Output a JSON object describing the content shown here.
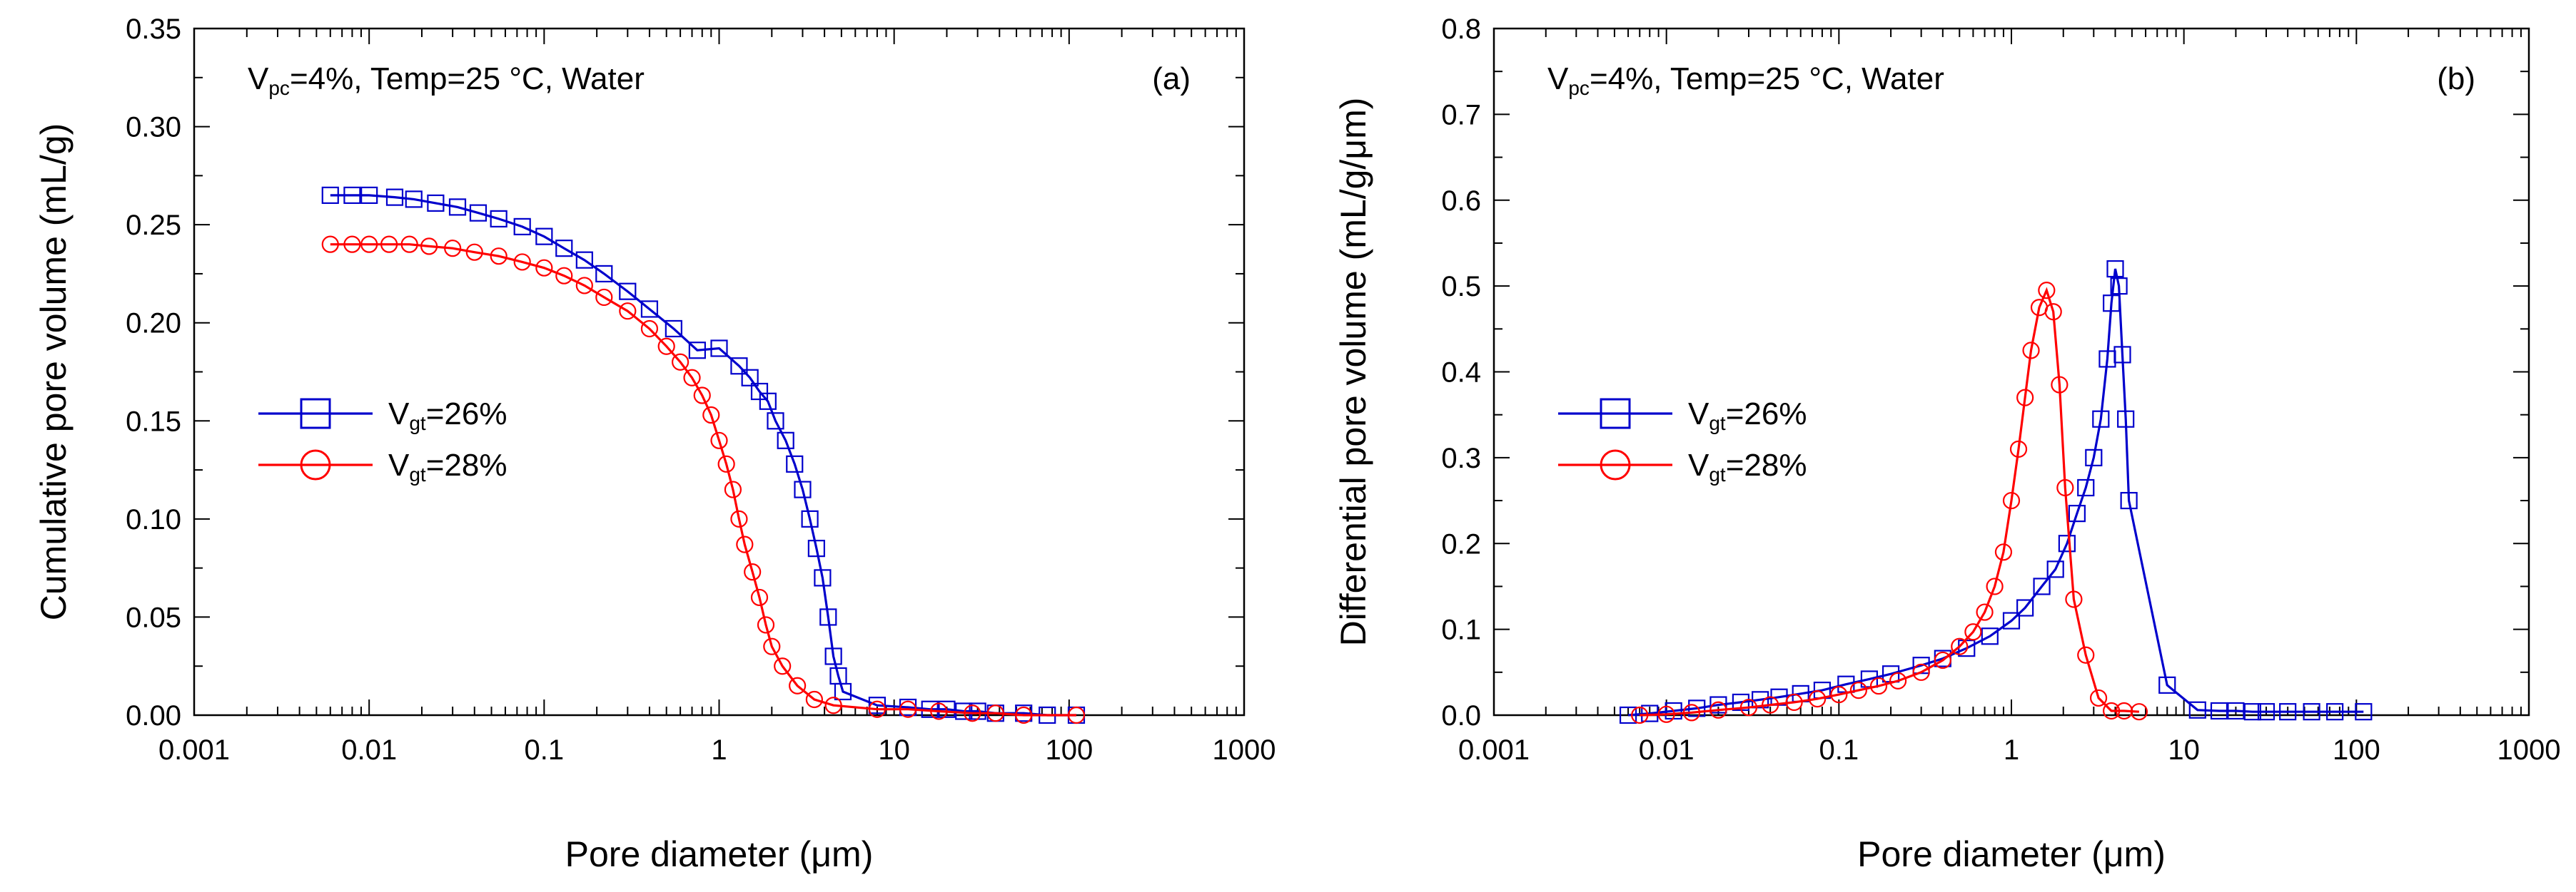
{
  "chart_data": [
    {
      "type": "line",
      "panel_label": "(a)",
      "annotation": {
        "main": "V",
        "sub": "pc",
        "rest": "=4%, Temp=25 °C, Water"
      },
      "xlabel": {
        "main": "Pore diameter (",
        "mu": "μ",
        "rest": "m)"
      },
      "ylabel": "Cumulative pore volume (mL/g)",
      "xscale": "log",
      "xlim": [
        0.001,
        1000
      ],
      "ylim": [
        0,
        0.35
      ],
      "x_ticks": [
        "0.001",
        "0.01",
        "0.1",
        "1",
        "10",
        "100",
        "1000"
      ],
      "y_ticks": [
        "0.00",
        "0.05",
        "0.10",
        "0.15",
        "0.20",
        "0.25",
        "0.30",
        "0.35"
      ],
      "legend_position": "center-left",
      "series": [
        {
          "name": "Vgt=26%",
          "legend": {
            "main": "V",
            "sub": "gt",
            "rest": "=26%"
          },
          "color": "#0000cc",
          "marker": "square",
          "points": [
            [
              0.006,
              0.265
            ],
            [
              0.008,
              0.265
            ],
            [
              0.01,
              0.265
            ],
            [
              0.014,
              0.264
            ],
            [
              0.018,
              0.263
            ],
            [
              0.024,
              0.261
            ],
            [
              0.032,
              0.259
            ],
            [
              0.042,
              0.256
            ],
            [
              0.055,
              0.253
            ],
            [
              0.075,
              0.249
            ],
            [
              0.1,
              0.244
            ],
            [
              0.13,
              0.238
            ],
            [
              0.17,
              0.232
            ],
            [
              0.22,
              0.225
            ],
            [
              0.3,
              0.216
            ],
            [
              0.4,
              0.207
            ],
            [
              0.55,
              0.197
            ],
            [
              0.75,
              0.186
            ],
            [
              1.0,
              0.187
            ],
            [
              1.3,
              0.178
            ],
            [
              1.5,
              0.172
            ],
            [
              1.7,
              0.165
            ],
            [
              1.9,
              0.16
            ],
            [
              2.1,
              0.15
            ],
            [
              2.4,
              0.14
            ],
            [
              2.7,
              0.128
            ],
            [
              3.0,
              0.115
            ],
            [
              3.3,
              0.1
            ],
            [
              3.6,
              0.085
            ],
            [
              3.9,
              0.07
            ],
            [
              4.2,
              0.05
            ],
            [
              4.5,
              0.03
            ],
            [
              4.8,
              0.02
            ],
            [
              5.1,
              0.012
            ],
            [
              8.0,
              0.005
            ],
            [
              12,
              0.004
            ],
            [
              16,
              0.003
            ],
            [
              20,
              0.003
            ],
            [
              25,
              0.002
            ],
            [
              30,
              0.002
            ],
            [
              38,
              0.001
            ],
            [
              55,
              0.001
            ],
            [
              75,
              0.0
            ],
            [
              110,
              0.0
            ]
          ]
        },
        {
          "name": "Vgt=28%",
          "legend": {
            "main": "V",
            "sub": "gt",
            "rest": "=28%"
          },
          "color": "#ff0000",
          "marker": "circle",
          "points": [
            [
              0.006,
              0.24
            ],
            [
              0.008,
              0.24
            ],
            [
              0.01,
              0.24
            ],
            [
              0.013,
              0.24
            ],
            [
              0.017,
              0.24
            ],
            [
              0.022,
              0.239
            ],
            [
              0.03,
              0.238
            ],
            [
              0.04,
              0.236
            ],
            [
              0.055,
              0.234
            ],
            [
              0.075,
              0.231
            ],
            [
              0.1,
              0.228
            ],
            [
              0.13,
              0.224
            ],
            [
              0.17,
              0.219
            ],
            [
              0.22,
              0.213
            ],
            [
              0.3,
              0.206
            ],
            [
              0.4,
              0.197
            ],
            [
              0.5,
              0.188
            ],
            [
              0.6,
              0.18
            ],
            [
              0.7,
              0.172
            ],
            [
              0.8,
              0.163
            ],
            [
              0.9,
              0.153
            ],
            [
              1.0,
              0.14
            ],
            [
              1.1,
              0.128
            ],
            [
              1.2,
              0.115
            ],
            [
              1.3,
              0.1
            ],
            [
              1.4,
              0.087
            ],
            [
              1.55,
              0.073
            ],
            [
              1.7,
              0.06
            ],
            [
              1.85,
              0.046
            ],
            [
              2.0,
              0.035
            ],
            [
              2.3,
              0.025
            ],
            [
              2.8,
              0.015
            ],
            [
              3.5,
              0.008
            ],
            [
              4.5,
              0.005
            ],
            [
              8.0,
              0.003
            ],
            [
              12,
              0.003
            ],
            [
              18,
              0.002
            ],
            [
              28,
              0.001
            ],
            [
              38,
              0.001
            ],
            [
              55,
              0.0
            ],
            [
              110,
              0.0
            ]
          ]
        }
      ]
    },
    {
      "type": "line",
      "panel_label": "(b)",
      "annotation": {
        "main": "V",
        "sub": "pc",
        "rest": "=4%, Temp=25 °C, Water"
      },
      "xlabel": {
        "main": "Pore diameter (",
        "mu": "μ",
        "rest": "m)"
      },
      "ylabel": "Differential pore volume (mL/g/μm)",
      "xscale": "log",
      "xlim": [
        0.001,
        1000
      ],
      "ylim": [
        0,
        0.8
      ],
      "x_ticks": [
        "0.001",
        "0.01",
        "0.1",
        "1",
        "10",
        "100",
        "1000"
      ],
      "y_ticks": [
        "0.0",
        "0.1",
        "0.2",
        "0.3",
        "0.4",
        "0.5",
        "0.6",
        "0.7",
        "0.8"
      ],
      "legend_position": "center-left",
      "series": [
        {
          "name": "Vgt=26%",
          "legend": {
            "main": "V",
            "sub": "gt",
            "rest": "=26%"
          },
          "color": "#0000cc",
          "marker": "square",
          "points": [
            [
              0.006,
              0.0
            ],
            [
              0.008,
              0.002
            ],
            [
              0.011,
              0.005
            ],
            [
              0.015,
              0.008
            ],
            [
              0.02,
              0.012
            ],
            [
              0.027,
              0.015
            ],
            [
              0.035,
              0.018
            ],
            [
              0.045,
              0.021
            ],
            [
              0.06,
              0.025
            ],
            [
              0.08,
              0.029
            ],
            [
              0.11,
              0.036
            ],
            [
              0.15,
              0.042
            ],
            [
              0.2,
              0.048
            ],
            [
              0.3,
              0.058
            ],
            [
              0.4,
              0.066
            ],
            [
              0.55,
              0.078
            ],
            [
              0.75,
              0.092
            ],
            [
              1.0,
              0.11
            ],
            [
              1.2,
              0.125
            ],
            [
              1.5,
              0.15
            ],
            [
              1.8,
              0.17
            ],
            [
              2.1,
              0.2
            ],
            [
              2.4,
              0.235
            ],
            [
              2.7,
              0.265
            ],
            [
              3.0,
              0.3
            ],
            [
              3.3,
              0.345
            ],
            [
              3.6,
              0.415
            ],
            [
              3.8,
              0.48
            ],
            [
              4.0,
              0.52
            ],
            [
              4.2,
              0.5
            ],
            [
              4.4,
              0.42
            ],
            [
              4.6,
              0.345
            ],
            [
              4.8,
              0.25
            ],
            [
              8.0,
              0.035
            ],
            [
              12,
              0.006
            ],
            [
              16,
              0.005
            ],
            [
              20,
              0.005
            ],
            [
              25,
              0.004
            ],
            [
              30,
              0.004
            ],
            [
              40,
              0.004
            ],
            [
              55,
              0.004
            ],
            [
              75,
              0.004
            ],
            [
              110,
              0.004
            ]
          ]
        },
        {
          "name": "Vgt=28%",
          "legend": {
            "main": "V",
            "sub": "gt",
            "rest": "=28%"
          },
          "color": "#ff0000",
          "marker": "circle",
          "points": [
            [
              0.007,
              0.0
            ],
            [
              0.01,
              0.001
            ],
            [
              0.014,
              0.003
            ],
            [
              0.02,
              0.006
            ],
            [
              0.03,
              0.009
            ],
            [
              0.04,
              0.012
            ],
            [
              0.055,
              0.015
            ],
            [
              0.075,
              0.019
            ],
            [
              0.1,
              0.024
            ],
            [
              0.13,
              0.029
            ],
            [
              0.17,
              0.034
            ],
            [
              0.22,
              0.04
            ],
            [
              0.3,
              0.05
            ],
            [
              0.4,
              0.064
            ],
            [
              0.5,
              0.08
            ],
            [
              0.6,
              0.097
            ],
            [
              0.7,
              0.12
            ],
            [
              0.8,
              0.15
            ],
            [
              0.9,
              0.19
            ],
            [
              1.0,
              0.25
            ],
            [
              1.1,
              0.31
            ],
            [
              1.2,
              0.37
            ],
            [
              1.3,
              0.425
            ],
            [
              1.45,
              0.475
            ],
            [
              1.6,
              0.495
            ],
            [
              1.75,
              0.47
            ],
            [
              1.9,
              0.385
            ],
            [
              2.05,
              0.265
            ],
            [
              2.3,
              0.135
            ],
            [
              2.7,
              0.07
            ],
            [
              3.2,
              0.02
            ],
            [
              3.8,
              0.005
            ],
            [
              4.5,
              0.005
            ],
            [
              5.5,
              0.004
            ]
          ]
        }
      ]
    }
  ]
}
